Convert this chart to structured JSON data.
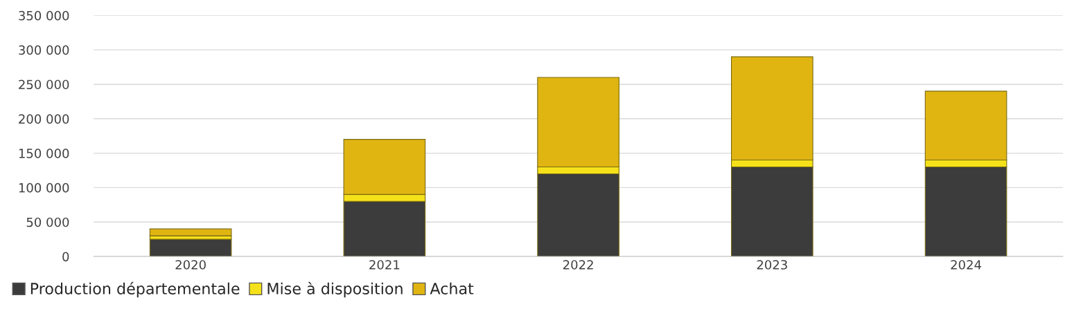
{
  "chart_data": {
    "type": "bar",
    "stacked": true,
    "categories": [
      "2020",
      "2021",
      "2022",
      "2023",
      "2024"
    ],
    "series": [
      {
        "name": "Production départementale",
        "color": "#3c3c3c",
        "values": [
          25000,
          80000,
          120000,
          130000,
          130000
        ]
      },
      {
        "name": "Mise à disposition",
        "color": "#f5e11a",
        "values": [
          5000,
          10000,
          10000,
          10000,
          10000
        ]
      },
      {
        "name": "Achat",
        "color": "#e0b512",
        "values": [
          10000,
          80000,
          130000,
          150000,
          100000
        ]
      }
    ],
    "ylim": [
      0,
      350000
    ],
    "yticks": [
      {
        "value": 0,
        "label": "0"
      },
      {
        "value": 50000,
        "label": "50 000"
      },
      {
        "value": 100000,
        "label": "100 000"
      },
      {
        "value": 150000,
        "label": "150 000"
      },
      {
        "value": 200000,
        "label": "200 000"
      },
      {
        "value": 250000,
        "label": "250 000"
      },
      {
        "value": 300000,
        "label": "300 000"
      },
      {
        "value": 350000,
        "label": "350 000"
      }
    ],
    "grid": "y",
    "legend": "bottom left"
  }
}
